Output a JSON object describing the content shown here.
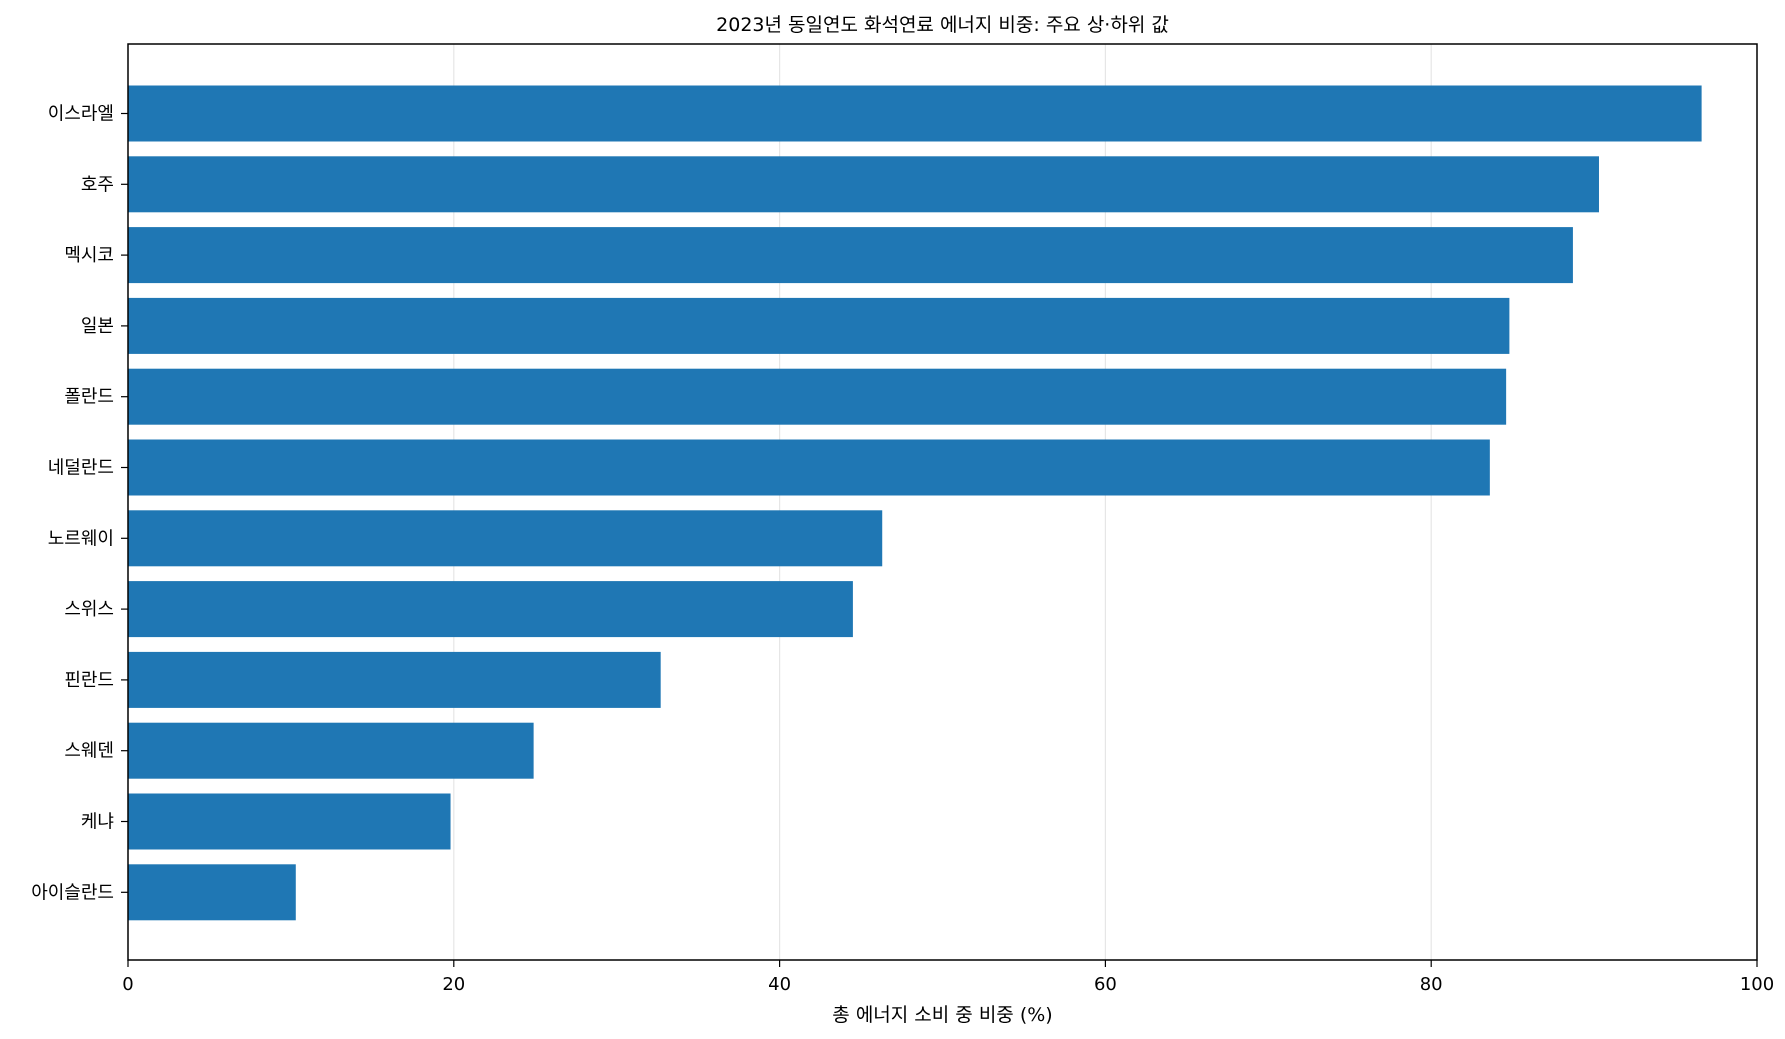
{
  "chart_data": {
    "type": "bar",
    "orientation": "horizontal",
    "title": "2023년 동일연도 화석연료 에너지 비중: 주요 상·하위 값",
    "xlabel": "총 에너지 소비 중 비중 (%)",
    "ylabel": "",
    "xlim": [
      0,
      100
    ],
    "xticks": [
      0,
      20,
      40,
      60,
      80,
      100
    ],
    "grid": "vertical",
    "categories": [
      "이스라엘",
      "호주",
      "멕시코",
      "일본",
      "폴란드",
      "네덜란드",
      "노르웨이",
      "스위스",
      "핀란드",
      "스웨덴",
      "케냐",
      "아이슬란드"
    ],
    "values": [
      96.6,
      90.3,
      88.7,
      84.8,
      84.6,
      83.6,
      46.3,
      44.5,
      32.7,
      24.9,
      19.8,
      10.3
    ],
    "bar_color": "#1f77b4"
  }
}
